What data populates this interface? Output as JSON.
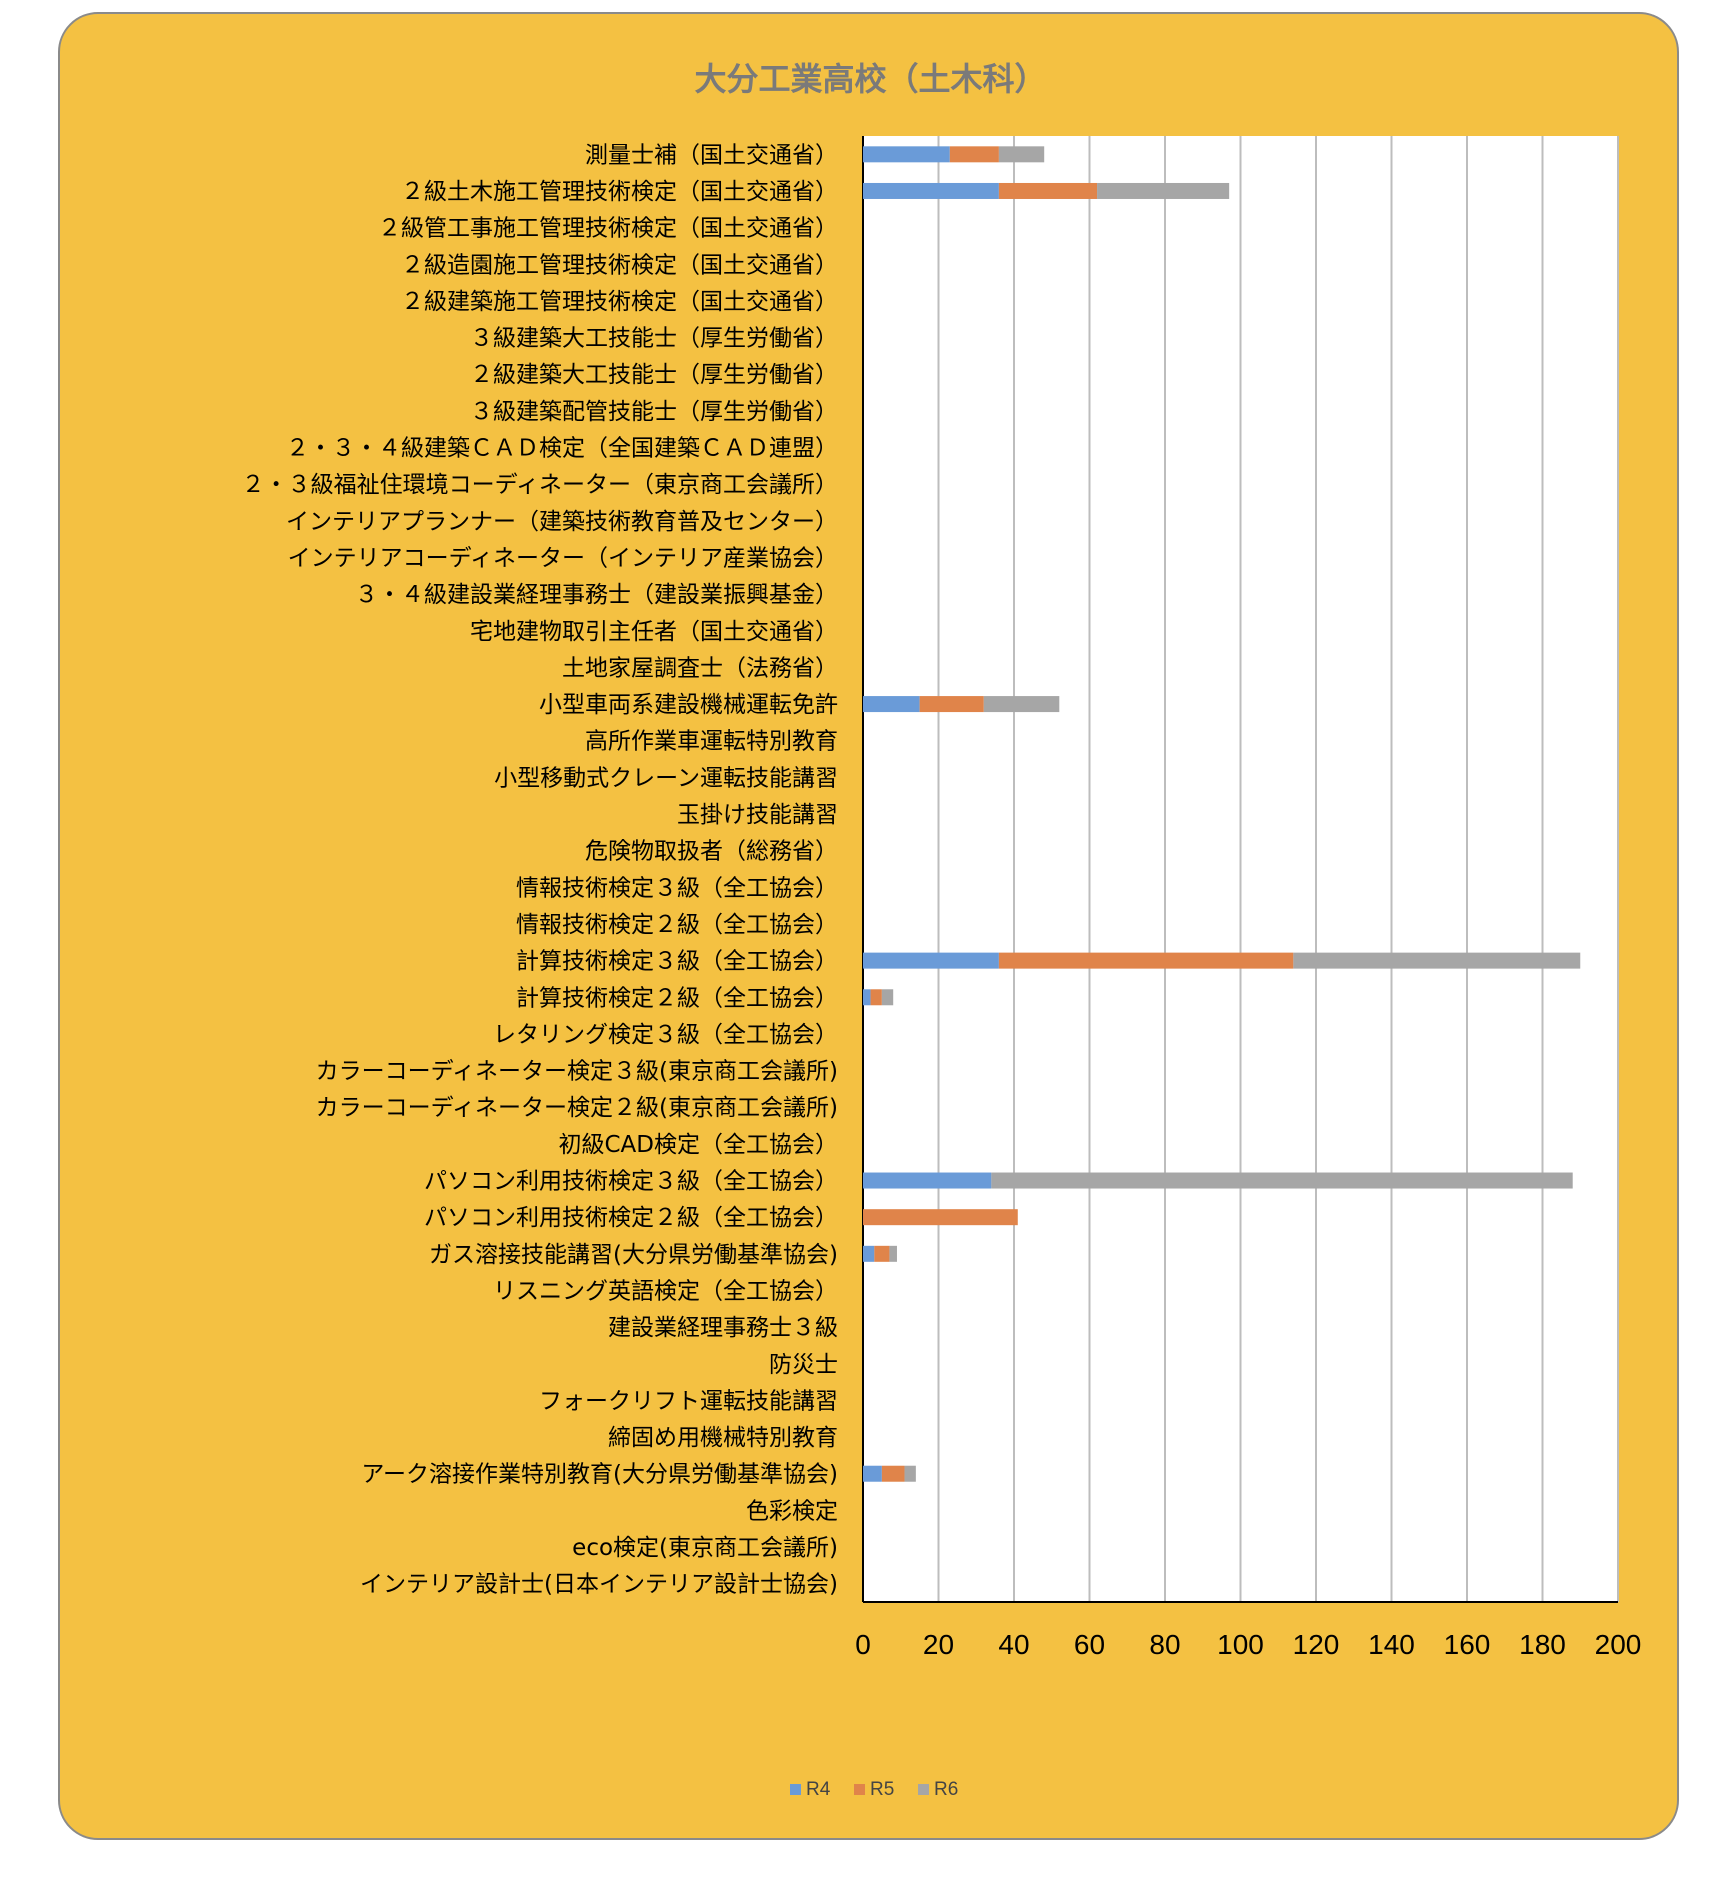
{
  "colors": {
    "background": "#F4C142",
    "R4": "#6A9BD8",
    "R5": "#E0844A",
    "R6": "#A6A6A6",
    "title": "#7a7a7a"
  },
  "chart_data": {
    "type": "bar",
    "orientation": "horizontal",
    "stacked": true,
    "title": "大分工業高校（土木科）",
    "xlabel": "",
    "ylabel": "",
    "xlim": [
      0,
      200
    ],
    "xticks": [
      0,
      20,
      40,
      60,
      80,
      100,
      120,
      140,
      160,
      180,
      200
    ],
    "grid": true,
    "legend_position": "bottom",
    "categories": [
      "測量士補（国土交通省）",
      "２級土木施工管理技術検定（国土交通省）",
      "２級管工事施工管理技術検定（国土交通省）",
      "２級造園施工管理技術検定（国土交通省）",
      "２級建築施工管理技術検定（国土交通省）",
      "３級建築大工技能士（厚生労働省）",
      "２級建築大工技能士（厚生労働省）",
      "３級建築配管技能士（厚生労働省）",
      "２・３・４級建築ＣＡＤ検定（全国建築ＣＡＤ連盟）",
      "２・３級福祉住環境コーディネーター（東京商工会議所）",
      "インテリアプランナー（建築技術教育普及センター）",
      "インテリアコーディネーター（インテリア産業協会）",
      "３・４級建設業経理事務士（建設業振興基金）",
      "宅地建物取引主任者（国土交通省）",
      "土地家屋調査士（法務省）",
      "小型車両系建設機械運転免許",
      "高所作業車運転特別教育",
      "小型移動式クレーン運転技能講習",
      "玉掛け技能講習",
      "危険物取扱者（総務省）",
      "情報技術検定３級（全工協会）",
      "情報技術検定２級（全工協会）",
      "計算技術検定３級（全工協会）",
      "計算技術検定２級（全工協会）",
      "レタリング検定３級（全工協会）",
      "カラーコーディネーター検定３級(東京商工会議所)",
      "カラーコーディネーター検定２級(東京商工会議所)",
      "初級CAD検定（全工協会）",
      "パソコン利用技術検定３級（全工協会）",
      "パソコン利用技術検定２級（全工協会）",
      "ガス溶接技能講習(大分県労働基準協会)",
      "リスニング英語検定（全工協会）",
      "建設業経理事務士３級",
      "防災士",
      "フォークリフト運転技能講習",
      "締固め用機械特別教育",
      "アーク溶接作業特別教育(大分県労働基準協会)",
      "色彩検定",
      "eco検定(東京商工会議所)",
      "インテリア設計士(日本インテリア設計士協会)"
    ],
    "series": [
      {
        "name": "R4",
        "values": [
          23,
          36,
          0,
          0,
          0,
          0,
          0,
          0,
          0,
          0,
          0,
          0,
          0,
          0,
          0,
          15,
          0,
          0,
          0,
          0,
          0,
          0,
          36,
          2,
          0,
          0,
          0,
          0,
          34,
          0,
          3,
          0,
          0,
          0,
          0,
          0,
          5,
          0,
          0,
          0
        ]
      },
      {
        "name": "R5",
        "values": [
          13,
          26,
          0,
          0,
          0,
          0,
          0,
          0,
          0,
          0,
          0,
          0,
          0,
          0,
          0,
          17,
          0,
          0,
          0,
          0,
          0,
          0,
          78,
          3,
          0,
          0,
          0,
          0,
          0,
          41,
          4,
          0,
          0,
          0,
          0,
          0,
          6,
          0,
          0,
          0
        ]
      },
      {
        "name": "R6",
        "values": [
          12,
          35,
          0,
          0,
          0,
          0,
          0,
          0,
          0,
          0,
          0,
          0,
          0,
          0,
          0,
          20,
          0,
          0,
          0,
          0,
          0,
          0,
          76,
          3,
          0,
          0,
          0,
          0,
          154,
          0,
          2,
          0,
          0,
          0,
          0,
          0,
          3,
          0,
          0,
          0
        ]
      }
    ]
  }
}
